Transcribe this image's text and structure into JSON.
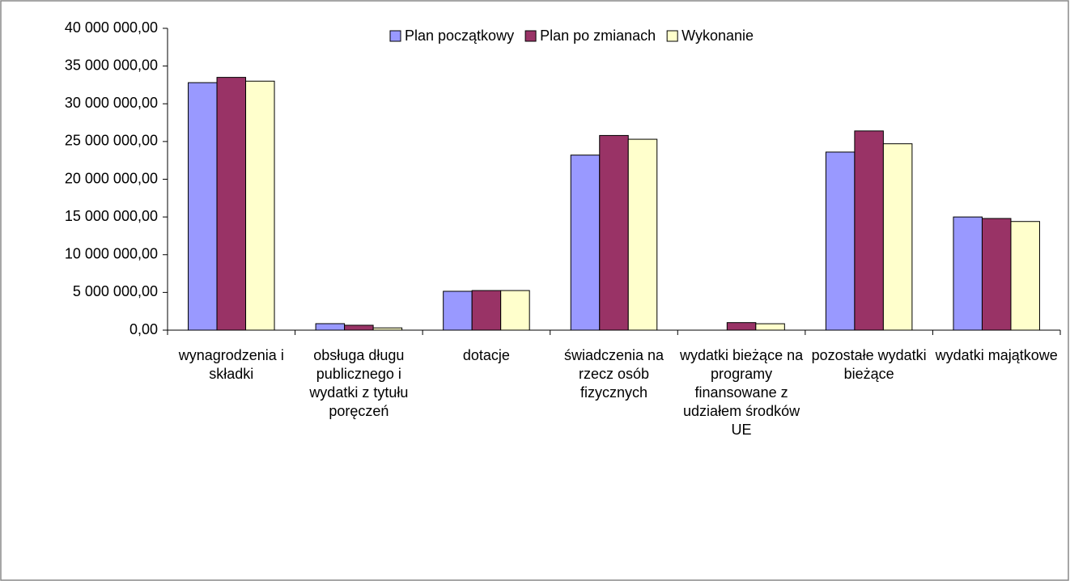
{
  "chart_data": {
    "type": "bar",
    "categories": [
      "wynagrodzenia i składki",
      "obsługa długu publicznego i wydatki z tytułu poręczeń",
      "dotacje",
      "świadczenia na rzecz osób fizycznych",
      "wydatki bieżące na programy finansowane z udziałem środków UE",
      "pozostałe wydatki bieżące",
      "wydatki majątkowe"
    ],
    "series": [
      {
        "name": "Plan początkowy",
        "color": "#9999ff",
        "values": [
          32800000,
          860000,
          5150000,
          23200000,
          0,
          23600000,
          15000000
        ]
      },
      {
        "name": "Plan po zmianach",
        "color": "#993366",
        "values": [
          33500000,
          650000,
          5250000,
          25800000,
          1000000,
          26400000,
          14800000
        ]
      },
      {
        "name": "Wykonanie",
        "color": "#ffffcc",
        "values": [
          33000000,
          300000,
          5250000,
          25300000,
          850000,
          24700000,
          14400000
        ]
      }
    ],
    "ylim": [
      0,
      40000000
    ],
    "yticks": [
      {
        "value": 0,
        "label": "0,00"
      },
      {
        "value": 5000000,
        "label": "5 000 000,00"
      },
      {
        "value": 10000000,
        "label": "10 000 000,00"
      },
      {
        "value": 15000000,
        "label": "15 000 000,00"
      },
      {
        "value": 20000000,
        "label": "20 000 000,00"
      },
      {
        "value": 25000000,
        "label": "25 000 000,00"
      },
      {
        "value": 30000000,
        "label": "30 000 000,00"
      },
      {
        "value": 35000000,
        "label": "35 000 000,00"
      },
      {
        "value": 40000000,
        "label": "40 000 000,00"
      }
    ],
    "grid": false,
    "legend": "top"
  }
}
